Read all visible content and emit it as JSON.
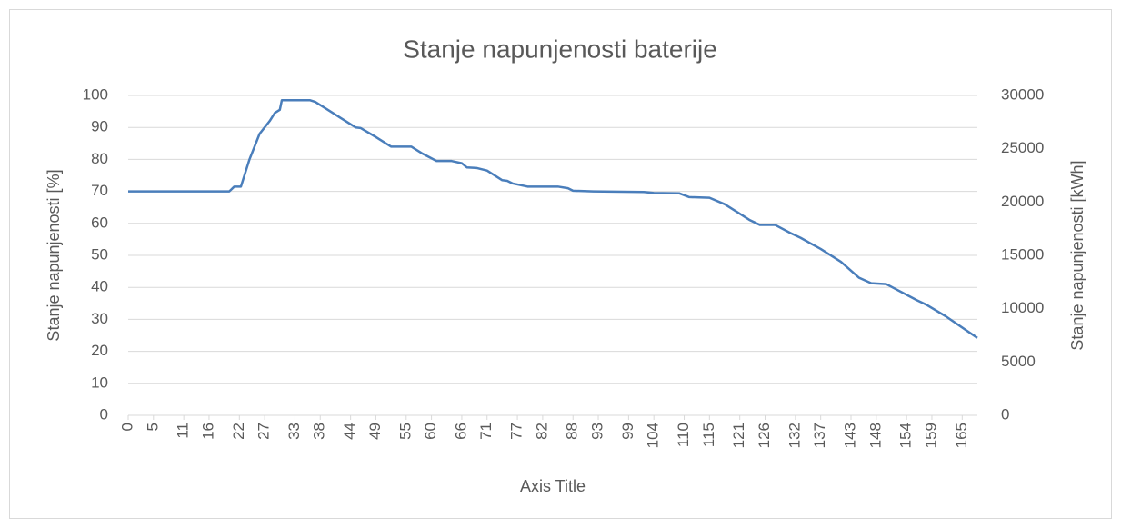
{
  "chart_data": {
    "type": "line",
    "title": "Stanje napunjenosti baterije",
    "x_label": "Axis Title",
    "y_label": "Stanje napunjenosti [%]",
    "y2_label": "Stanje napunjenosti  [kWh]",
    "x": [
      0,
      20,
      21,
      22.3,
      24,
      26,
      27,
      28,
      29,
      30,
      30.4,
      36,
      37,
      39,
      42,
      45,
      46,
      49,
      52,
      56,
      58,
      61,
      64,
      66,
      67,
      69,
      71,
      74,
      75,
      76,
      79,
      85,
      87,
      88,
      92,
      102,
      104,
      109,
      111,
      115,
      118,
      121,
      123,
      125,
      128,
      131,
      133,
      137,
      141,
      144.6,
      147,
      150,
      156,
      158,
      161.7,
      168
    ],
    "series": [
      {
        "color": "#4a7ebb",
        "values": [
          70,
          70,
          71.5,
          71.5,
          80,
          88,
          90,
          92,
          94.5,
          95.5,
          98.5,
          98.5,
          98,
          96,
          93,
          90,
          89.8,
          87,
          84,
          84,
          82,
          79.5,
          79.5,
          78.8,
          77.5,
          77.3,
          76.5,
          73.5,
          73.3,
          72.5,
          71.5,
          71.5,
          71,
          70.2,
          70,
          69.8,
          69.5,
          69.4,
          68.2,
          68,
          66,
          63,
          61,
          59.5,
          59.5,
          57,
          55.5,
          52,
          48,
          43,
          41.3,
          41,
          36,
          34.5,
          31,
          24.2
        ]
      }
    ],
    "xlim": [
      0,
      168
    ],
    "xticks": [
      0,
      5,
      11,
      16,
      22,
      27,
      33,
      38,
      44,
      49,
      55,
      60,
      66,
      71,
      77,
      82,
      88,
      93,
      99,
      104,
      110,
      115,
      121,
      126,
      132,
      137,
      143,
      148,
      154,
      159,
      165
    ],
    "ylim": [
      0,
      100
    ],
    "yticks": [
      0,
      10,
      20,
      30,
      40,
      50,
      60,
      70,
      80,
      90,
      100
    ],
    "y2lim": [
      0,
      30000
    ],
    "y2ticks": [
      0,
      5000,
      10000,
      15000,
      20000,
      25000,
      30000
    ],
    "grid": true
  }
}
